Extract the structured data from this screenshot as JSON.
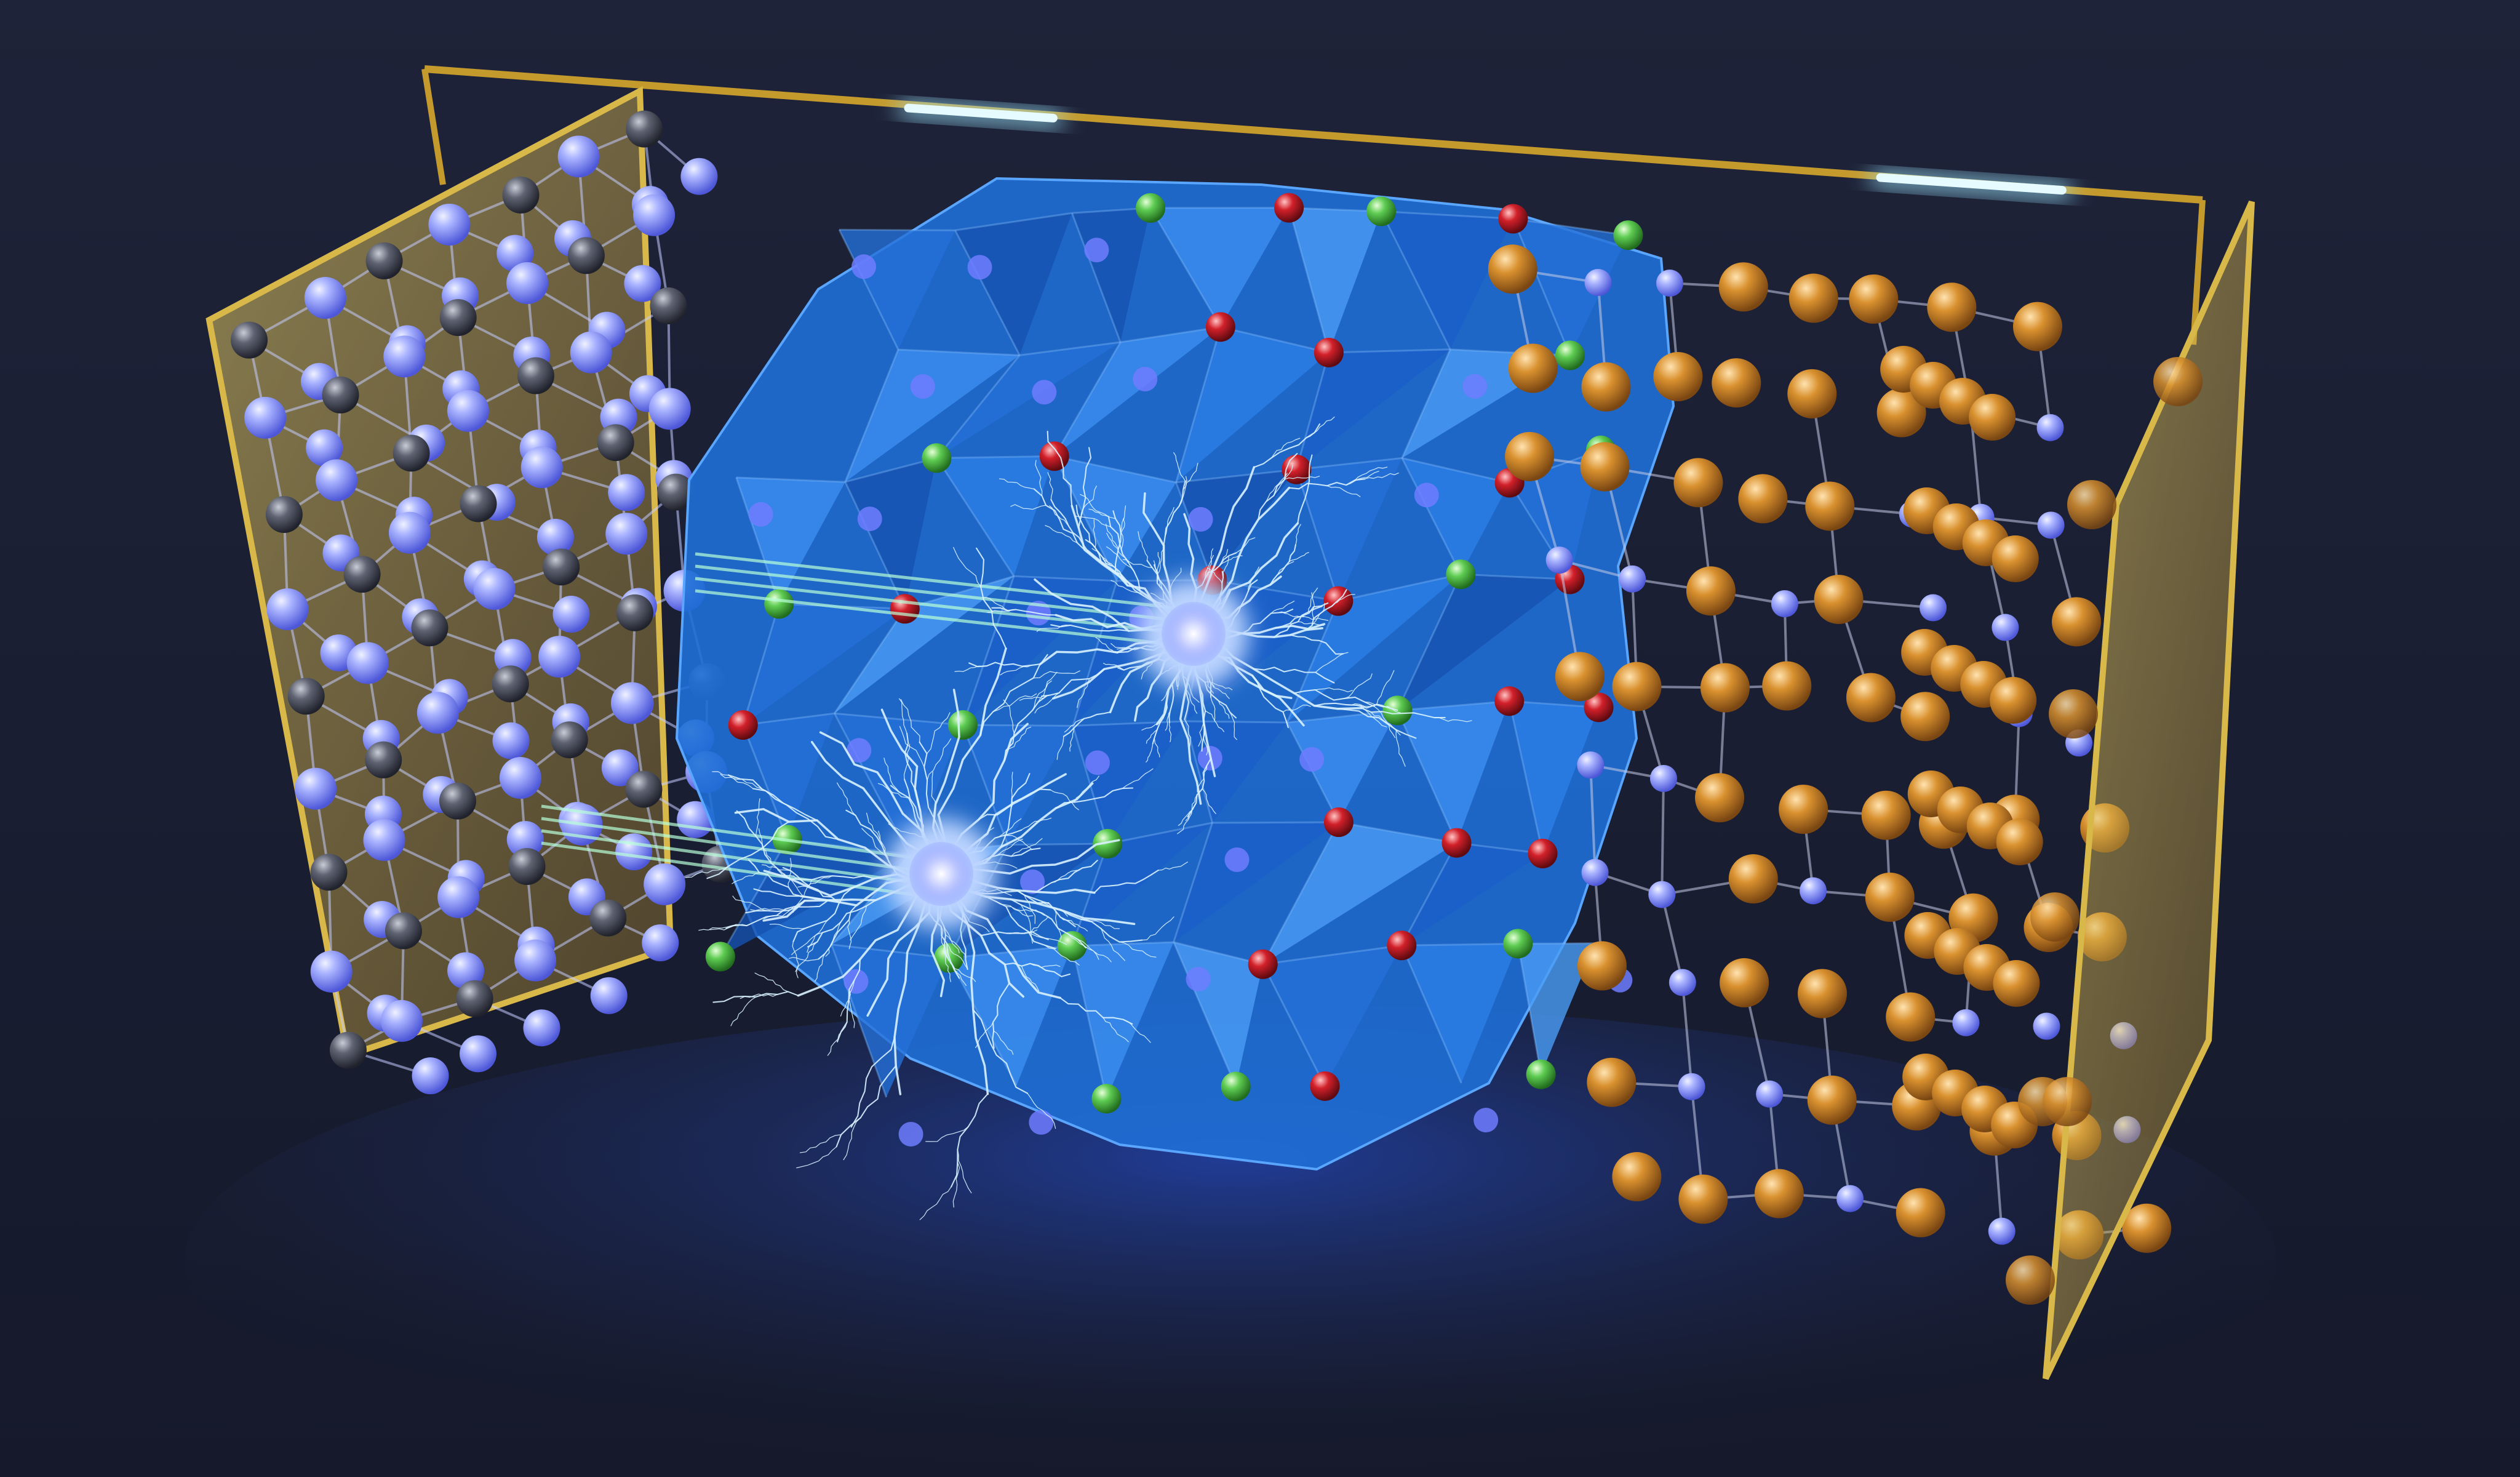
{
  "image": {
    "kind": "3D render",
    "colors": {
      "background": "#1c2138",
      "floor_glow": "#1d3f9a",
      "electrolyte_crystal": "#1f6fd6",
      "electrolyte_face_light": "#3a8fe8",
      "lithium_ion": "#8f9dff",
      "left_atoms": "#5a5e6c",
      "right_atoms": "#d08a32",
      "green_atoms": "#5ecc52",
      "red_atoms": "#d2202a",
      "collector_plate": "#d9b84a",
      "frame_wire": "#c49a2c",
      "light_strip": "#9fe9ff",
      "lightning": "#d8f2ff",
      "beam": "#b8ffd8"
    }
  }
}
